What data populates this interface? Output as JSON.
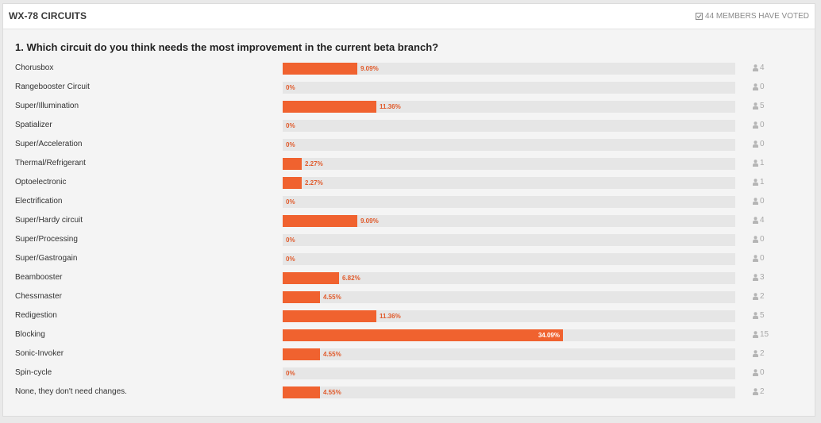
{
  "poll": {
    "title": "WX-78 CIRCUITS",
    "voted_text": "44 MEMBERS HAVE VOTED",
    "question": "1. Which circuit do you think needs the most improvement in the current beta branch?",
    "accent_color": "#f0622f",
    "options": [
      {
        "label": "Chorusbox",
        "percent_text": "9.09%",
        "percent": 9.09,
        "votes": "4"
      },
      {
        "label": "Rangebooster Circuit",
        "percent_text": "0%",
        "percent": 0,
        "votes": "0"
      },
      {
        "label": "Super/Illumination",
        "percent_text": "11.36%",
        "percent": 11.36,
        "votes": "5"
      },
      {
        "label": "Spatializer",
        "percent_text": "0%",
        "percent": 0,
        "votes": "0"
      },
      {
        "label": "Super/Acceleration",
        "percent_text": "0%",
        "percent": 0,
        "votes": "0"
      },
      {
        "label": "Thermal/Refrigerant",
        "percent_text": "2.27%",
        "percent": 2.27,
        "votes": "1"
      },
      {
        "label": "Optoelectronic",
        "percent_text": "2.27%",
        "percent": 2.27,
        "votes": "1"
      },
      {
        "label": "Electrification",
        "percent_text": "0%",
        "percent": 0,
        "votes": "0"
      },
      {
        "label": "Super/Hardy circuit",
        "percent_text": "9.09%",
        "percent": 9.09,
        "votes": "4"
      },
      {
        "label": "Super/Processing",
        "percent_text": "0%",
        "percent": 0,
        "votes": "0"
      },
      {
        "label": "Super/Gastrogain",
        "percent_text": "0%",
        "percent": 0,
        "votes": "0"
      },
      {
        "label": "Beambooster",
        "percent_text": "6.82%",
        "percent": 6.82,
        "votes": "3"
      },
      {
        "label": "Chessmaster",
        "percent_text": "4.55%",
        "percent": 4.55,
        "votes": "2"
      },
      {
        "label": "Redigestion",
        "percent_text": "11.36%",
        "percent": 11.36,
        "votes": "5"
      },
      {
        "label": "Blocking",
        "percent_text": "34.09%",
        "percent": 34.09,
        "votes": "15"
      },
      {
        "label": "Sonic-Invoker",
        "percent_text": "4.55%",
        "percent": 4.55,
        "votes": "2"
      },
      {
        "label": "Spin-cycle",
        "percent_text": "0%",
        "percent": 0,
        "votes": "0"
      },
      {
        "label": "None, they don't need changes.",
        "percent_text": "4.55%",
        "percent": 4.55,
        "votes": "2"
      }
    ]
  }
}
